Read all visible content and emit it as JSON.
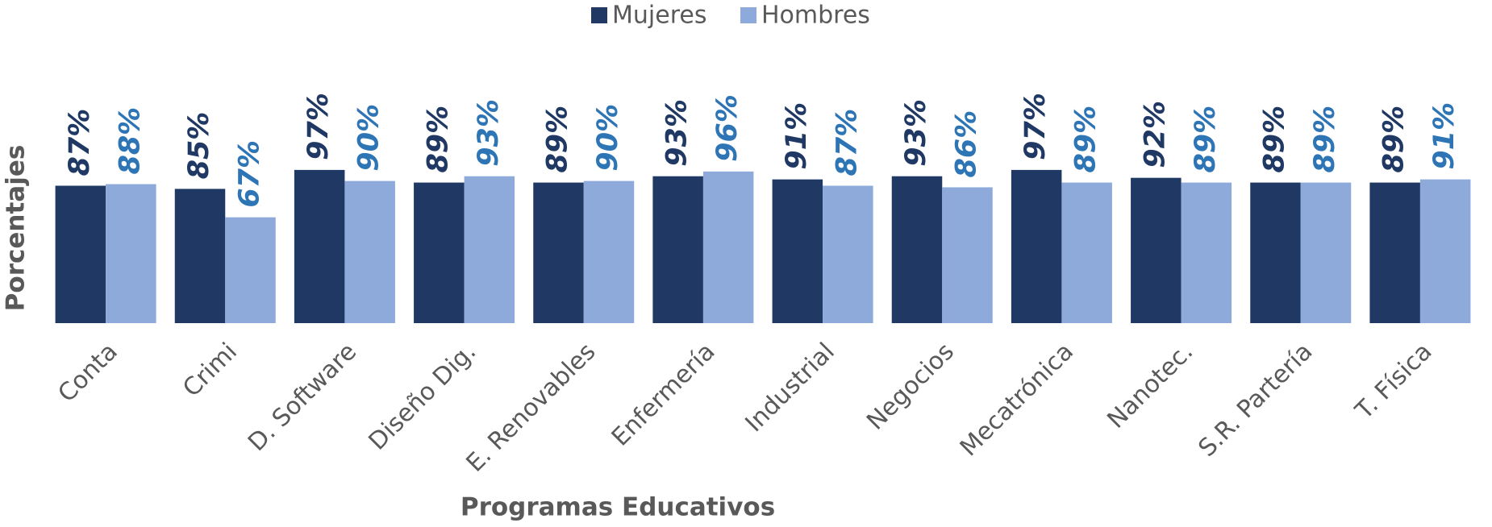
{
  "chart_data": {
    "type": "bar",
    "x_label": "Programas Educativos",
    "y_label": "Porcentajes",
    "categories": [
      "Conta",
      "Crimi",
      "D. Software",
      "Diseño Dig.",
      "E. Renovables",
      "Enfermería",
      "Industrial",
      "Negocios",
      "Mecatrónica",
      "Nanotec.",
      "S.R. Partería",
      "T. Física"
    ],
    "series": [
      {
        "name": "Mujeres",
        "color": "#1f3864",
        "label_color": "#1f3864",
        "values": [
          87,
          85,
          97,
          89,
          89,
          93,
          91,
          93,
          97,
          92,
          89,
          89
        ],
        "value_labels": [
          "87%",
          "85%",
          "97%",
          "89%",
          "89%",
          "93%",
          "91%",
          "93%",
          "97%",
          "92%",
          "89%",
          "89%"
        ]
      },
      {
        "name": "Hombres",
        "color": "#8eaadb",
        "label_color": "#2e75b6",
        "values": [
          88,
          67,
          90,
          93,
          90,
          96,
          87,
          86,
          89,
          89,
          89,
          91
        ],
        "value_labels": [
          "88%",
          "67%",
          "90%",
          "93%",
          "90%",
          "96%",
          "87%",
          "86%",
          "89%",
          "89%",
          "89%",
          "91%"
        ]
      }
    ],
    "ylim": [
      0,
      100
    ],
    "grid": false,
    "legend": "top"
  }
}
